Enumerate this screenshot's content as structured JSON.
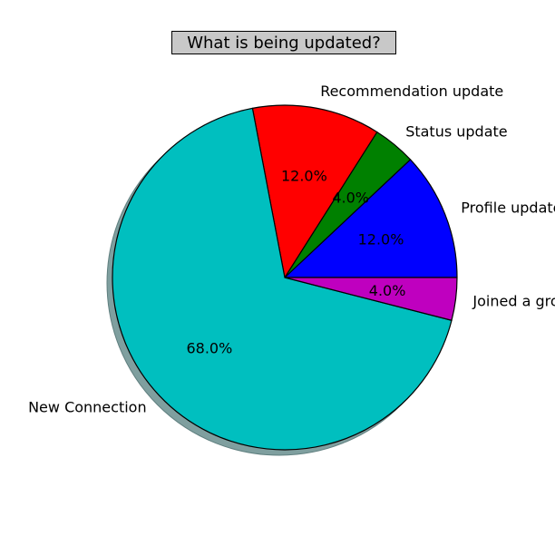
{
  "chart_data": {
    "type": "pie",
    "title": "What is being updated?",
    "slices": [
      {
        "label": "Profile update",
        "value": 12.0,
        "pct_label": "12.0%",
        "color": "#0000ff"
      },
      {
        "label": "Status update",
        "value": 4.0,
        "pct_label": "4.0%",
        "color": "#008000"
      },
      {
        "label": "Recommendation update",
        "value": 12.0,
        "pct_label": "12.0%",
        "color": "#ff0000"
      },
      {
        "label": "New Connection",
        "value": 68.0,
        "pct_label": "68.0%",
        "color": "#00bfbf"
      },
      {
        "label": "Joined a group",
        "value": 4.0,
        "pct_label": "4.0%",
        "color": "#bf00bf"
      }
    ],
    "start_angle_deg": 0,
    "direction": "counterclockwise",
    "shadow": true,
    "shadow_color": "#7f9f9f",
    "edge_color": "#000000"
  }
}
